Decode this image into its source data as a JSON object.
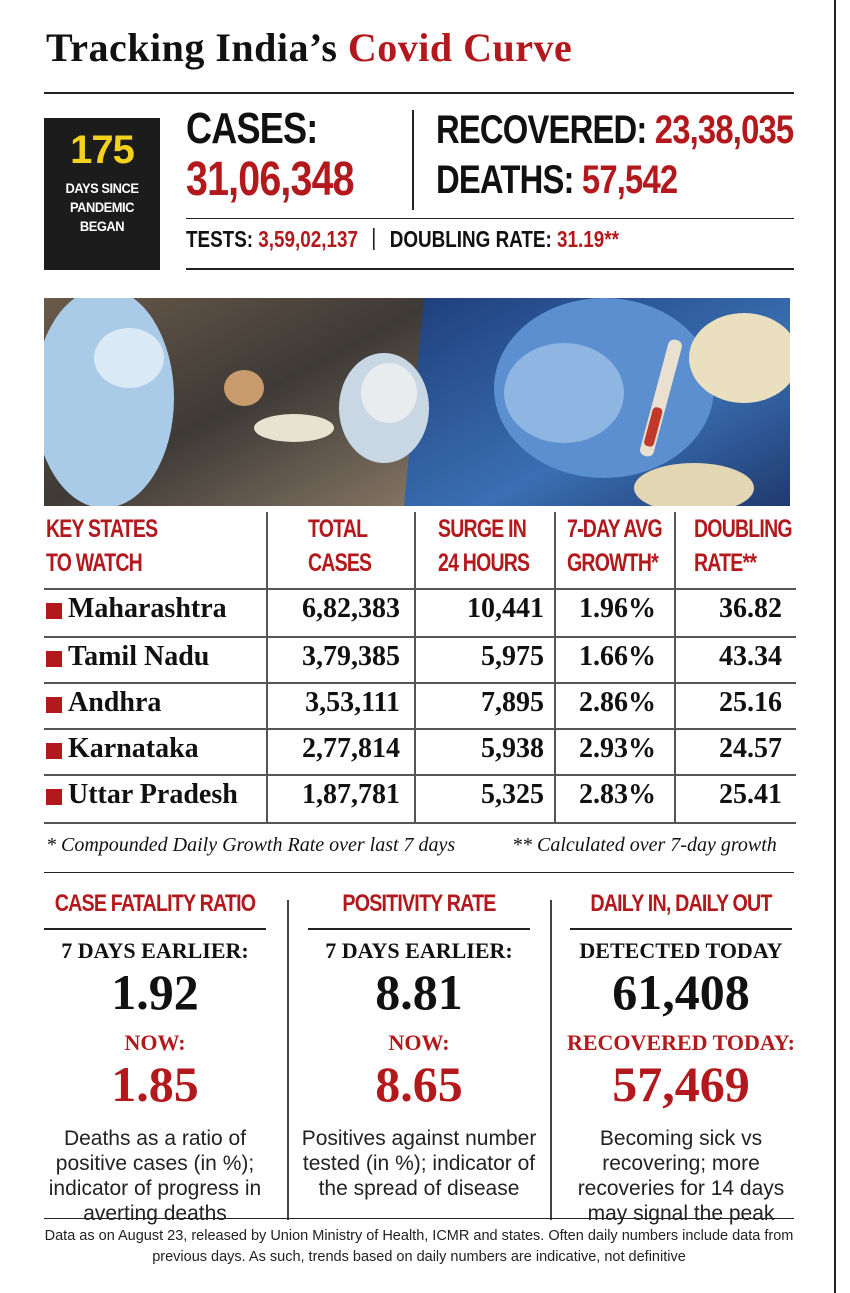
{
  "title": {
    "part1": "Tracking India’s",
    "part2": "Covid Curve"
  },
  "days": {
    "number": "175",
    "label_lines": [
      "DAYS SINCE",
      "PANDEMIC",
      "BEGAN"
    ]
  },
  "stats": {
    "cases_label": "CASES:",
    "cases_value": "31,06,348",
    "recovered_label": "RECOVERED:",
    "recovered_value": "23,38,035",
    "deaths_label": "DEATHS:",
    "deaths_value": "57,542",
    "tests_label": "TESTS:",
    "tests_value": "3,59,02,137",
    "doubling_label": "DOUBLING RATE:",
    "doubling_value": "31.19**"
  },
  "table": {
    "headers": [
      [
        "KEY STATES",
        "TO WATCH"
      ],
      [
        "TOTAL",
        "CASES"
      ],
      [
        "SURGE IN",
        "24 HOURS"
      ],
      [
        "7-DAY AVG",
        "GROWTH*"
      ],
      [
        "DOUBLING",
        "RATE**"
      ]
    ],
    "rows": [
      {
        "state": "Maharashtra",
        "total": "6,82,383",
        "surge": "10,441",
        "growth": "1.96%",
        "doubling": "36.82"
      },
      {
        "state": "Tamil Nadu",
        "total": "3,79,385",
        "surge": "5,975",
        "growth": "1.66%",
        "doubling": "43.34"
      },
      {
        "state": "Andhra",
        "total": "3,53,111",
        "surge": "7,895",
        "growth": "2.86%",
        "doubling": "25.16"
      },
      {
        "state": "Karnataka",
        "total": "2,77,814",
        "surge": "5,938",
        "growth": "2.93%",
        "doubling": "24.57"
      },
      {
        "state": "Uttar Pradesh",
        "total": "1,87,781",
        "surge": "5,325",
        "growth": "2.83%",
        "doubling": "25.41"
      }
    ]
  },
  "footnotes": {
    "growth": "* Compounded Daily Growth Rate over last 7 days",
    "doubling": "** Calculated over 7-day growth"
  },
  "panels": [
    {
      "title": "CASE FATALITY RATIO",
      "label1": "7 DAYS EARLIER:",
      "value1": "1.92",
      "label2": "NOW:",
      "value2": "1.85",
      "description": "Deaths as a ratio of positive cases (in %); indicator of progress in averting deaths"
    },
    {
      "title": "POSITIVITY RATE",
      "label1": "7 DAYS EARLIER:",
      "value1": "8.81",
      "label2": "NOW:",
      "value2": "8.65",
      "description": "Positives against number tested (in %); indicator of the spread of disease"
    },
    {
      "title": "DAILY IN, DAILY OUT",
      "label1": "DETECTED TODAY",
      "value1": "61,408",
      "label2": "RECOVERED TODAY:",
      "value2": "57,469",
      "description": "Becoming sick vs recovering; more recoveries for 14 days may signal the peak"
    }
  ],
  "source_note": "Data as on August 23, released by Union Ministry of Health, ICMR and states. Often daily numbers include data from previous days. As such, trends based on daily numbers are indicative, not definitive",
  "colors": {
    "accent_red": "#b3191c",
    "highlight_yellow": "#f4d21c",
    "dark_box": "#1c1c1c"
  }
}
